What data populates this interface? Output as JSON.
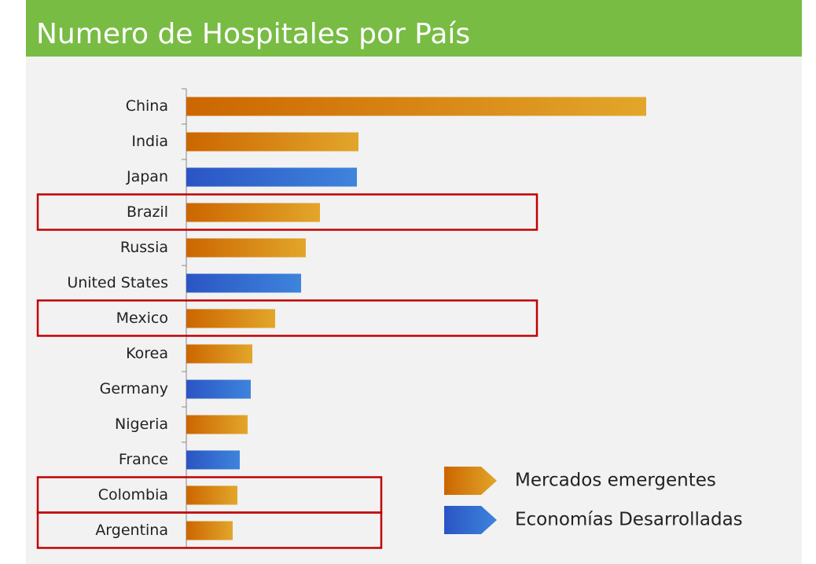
{
  "chart_data": {
    "type": "barh",
    "title": "Numero de Hospitales por País",
    "categories": [
      "China",
      "India",
      "Japan",
      "Brazil",
      "Russia",
      "United States",
      "Mexico",
      "Korea",
      "Germany",
      "Nigeria",
      "France",
      "Colombia",
      "Argentina"
    ],
    "series": [
      {
        "name": "Mercados emergentes",
        "colors": [
          "#cc6600",
          "#e2a62a"
        ],
        "values": [
          585,
          219,
          null,
          170,
          152,
          null,
          113,
          84,
          null,
          78,
          null,
          65,
          59
        ]
      },
      {
        "name": "Economías Desarrolladas",
        "colors": [
          "#2a55c4",
          "#3e84dc"
        ],
        "values": [
          null,
          null,
          217,
          null,
          null,
          146,
          null,
          null,
          82,
          null,
          68,
          null,
          null
        ]
      }
    ],
    "highlight": [
      3,
      6,
      11,
      12
    ],
    "legend": "lower right"
  }
}
